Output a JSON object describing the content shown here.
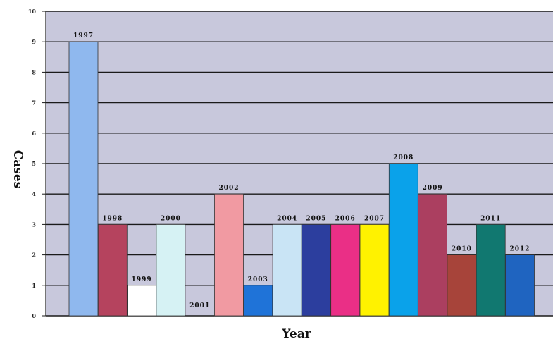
{
  "chart_data": {
    "type": "bar",
    "title": "",
    "xlabel": "Year",
    "ylabel": "Cases",
    "ylim": [
      0,
      10
    ],
    "yticks": [
      "0",
      "1",
      "2",
      "3",
      "4",
      "5",
      "6",
      "7",
      "8",
      "9",
      "10"
    ],
    "grid": true,
    "plot_background": "#c8c8dc",
    "categories": [
      "1997",
      "1998",
      "1999",
      "2000",
      "2001",
      "2002",
      "2003",
      "2004",
      "2005",
      "2006",
      "2007",
      "2008",
      "2009",
      "2010",
      "2011",
      "2012"
    ],
    "values": [
      9,
      3,
      1,
      3,
      0,
      4,
      1,
      3,
      3,
      3,
      3,
      5,
      4,
      2,
      3,
      2
    ],
    "bar_labels": [
      "1997",
      "1998",
      "1999",
      "2000",
      "2001",
      "2002",
      "2003",
      "2004",
      "2005",
      "2006",
      "2007",
      "2008",
      "2009",
      "2010",
      "2011",
      "2012"
    ],
    "colors": [
      "#8fb8ee",
      "#b5435e",
      "#ffffff",
      "#d6f2f4",
      "#ffffff",
      "#f19aa2",
      "#1f73d8",
      "#c9e4f5",
      "#2c3e9e",
      "#ea2f86",
      "#fff200",
      "#0aa2ea",
      "#ab3f60",
      "#a7443a",
      "#117870",
      "#1f64c0"
    ]
  }
}
